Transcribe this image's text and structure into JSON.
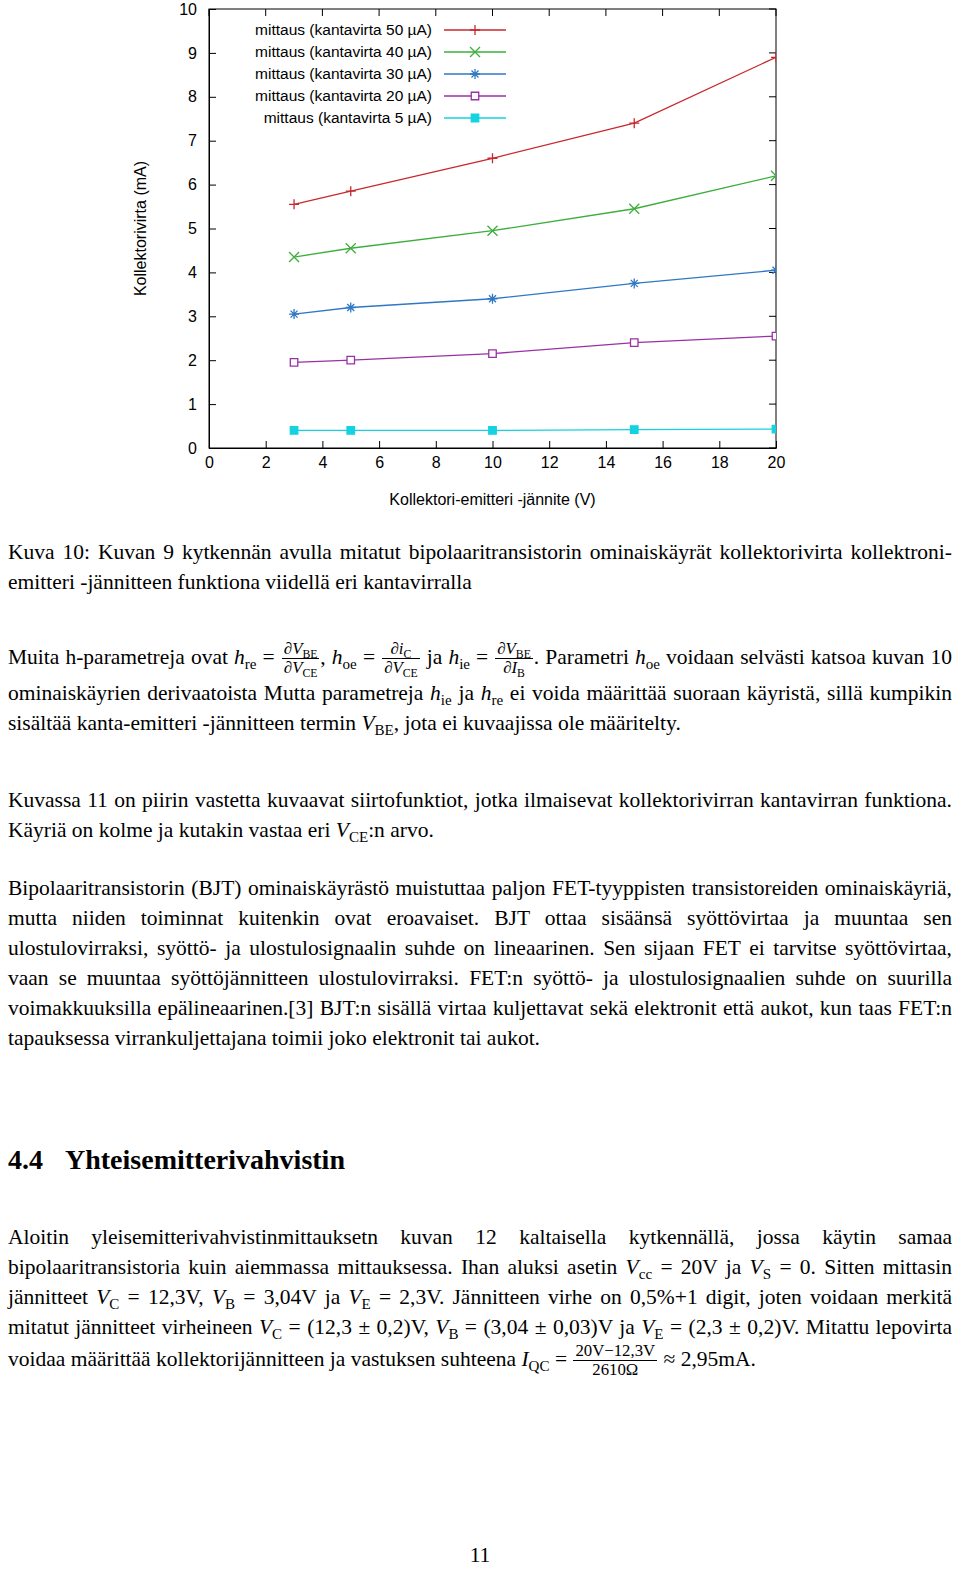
{
  "chart_data": {
    "type": "line",
    "x": [
      3,
      5,
      10,
      15,
      20
    ],
    "series": [
      {
        "name": "mittaus (kantavirta 50 µA)",
        "color": "#c8282d",
        "marker": "plus",
        "values": [
          5.55,
          5.85,
          6.6,
          7.4,
          8.9
        ]
      },
      {
        "name": "mittaus (kantavirta 40 µA)",
        "color": "#3cae3c",
        "marker": "cross",
        "values": [
          4.35,
          4.55,
          4.95,
          5.45,
          6.2
        ]
      },
      {
        "name": "mittaus (kantavirta 30 µA)",
        "color": "#2f78c4",
        "marker": "star",
        "values": [
          3.05,
          3.2,
          3.4,
          3.75,
          4.05
        ]
      },
      {
        "name": "mittaus (kantavirta 20 µA)",
        "color": "#9a30a6",
        "marker": "square-open",
        "values": [
          1.95,
          2.0,
          2.15,
          2.4,
          2.55
        ]
      },
      {
        "name": "mittaus (kantavirta 5 µA)",
        "color": "#14d2e0",
        "marker": "square",
        "values": [
          0.4,
          0.4,
          0.4,
          0.42,
          0.43
        ]
      }
    ],
    "xlim": [
      0,
      20
    ],
    "ylim": [
      0,
      10
    ],
    "xticks": [
      0,
      2,
      4,
      6,
      8,
      10,
      12,
      14,
      16,
      18,
      20
    ],
    "yticks": [
      0,
      1,
      2,
      3,
      4,
      5,
      6,
      7,
      8,
      9,
      10
    ],
    "x_label": "Kollektori-emitteri -jännite (V)",
    "y_label": "Kollektorivirta (mA)",
    "legend": "top-left",
    "grid": false
  },
  "document": {
    "caption": "Kuva 10: Kuvan 9 kytkennän avulla mitatut bipolaaritransistorin ominaiskäyrät kollektorivirta kollektroni-emitteri -jännitteen funktiona viidellä eri kantavirralla",
    "paragraphs": [
      {
        "runs": [
          "Muita h-parametreja ovat ",
          {
            "v": "h",
            "sub": "re"
          },
          " = ",
          {
            "frac": {
              "num": [
                "∂",
                {
                  "v": "V",
                  "sub": "BE"
                }
              ],
              "den": [
                "∂",
                {
                  "v": "V",
                  "sub": "CE"
                }
              ]
            }
          },
          ", ",
          {
            "v": "h",
            "sub": "oe"
          },
          " = ",
          {
            "frac": {
              "num": [
                "∂",
                {
                  "v": "i",
                  "sub": "C"
                }
              ],
              "den": [
                "∂",
                {
                  "v": "V",
                  "sub": "CE"
                }
              ]
            }
          },
          " ja ",
          {
            "v": "h",
            "sub": "ie"
          },
          " = ",
          {
            "frac": {
              "num": [
                "∂",
                {
                  "v": "V",
                  "sub": "BE"
                }
              ],
              "den": [
                "∂",
                {
                  "v": "I",
                  "sub": "B"
                }
              ]
            }
          },
          ". Parametri ",
          {
            "v": "h",
            "sub": "oe"
          },
          " voidaan selvästi katsoa kuvan 10 ominaiskäyrien derivaatoista Mutta parametreja ",
          {
            "v": "h",
            "sub": "ie"
          },
          " ja ",
          {
            "v": "h",
            "sub": "re"
          },
          " ei voida määrittää suoraan käyristä, sillä kumpikin sisältää kanta-emitteri -jännitteen termin ",
          {
            "v": "V",
            "sub": "BE"
          },
          ", jota ei kuvaajissa ole määritelty."
        ]
      },
      {
        "runs": [
          "Kuvassa 11 on piirin vastetta kuvaavat siirtofunktiot, jotka ilmaisevat kollektorivirran kantavirran funktiona. Käyriä on kolme ja kutakin vastaa eri ",
          {
            "v": "V",
            "sub": "CE"
          },
          ":n arvo."
        ]
      },
      {
        "runs": [
          "Bipolaaritransistorin (BJT) ominaiskäyrästö muistuttaa paljon FET-tyyppisten transistoreiden ominaiskäyriä, mutta niiden toiminnat kuitenkin ovat eroavaiset. BJT ottaa sisäänsä syöttövirtaa ja muuntaa sen ulostulovirraksi, syöttö- ja ulostulosignaalin suhde on lineaarinen. Sen sijaan FET ei tarvitse syöttövirtaa, vaan se muuntaa syöttöjännitteen ulostulovirraksi. FET:n syöttö- ja ulostulosignaalien suhde on suurilla voimakkuuksilla epälineaarinen.[3] BJT:n sisällä virtaa kuljettavat sekä elektronit että aukot, kun taas FET:n tapauksessa virrankuljettajana toimii joko elektronit tai aukot."
        ]
      }
    ],
    "heading": {
      "number": "4.4",
      "title": "Yhteisemitterivahvistin"
    },
    "paragraphs_after": [
      {
        "runs": [
          "Aloitin yleisemitterivahvistinmittauksetn kuvan 12 kaltaisella kytkennällä, jossa käytin samaa bipolaaritransistoria kuin aiemmassa mittauksessa. Ihan aluksi asetin ",
          {
            "v": "V",
            "sub": "cc"
          },
          " = 20V ja ",
          {
            "v": "V",
            "sub": "S"
          },
          " = 0. Sitten mittasin jännitteet ",
          {
            "v": "V",
            "sub": "C"
          },
          " = 12,3V, ",
          {
            "v": "V",
            "sub": "B"
          },
          " = 3,04V ja ",
          {
            "v": "V",
            "sub": "E"
          },
          " = 2,3V. Jännitteen virhe on 0,5%+1 digit, joten voidaan merkitä mitatut jännitteet virheineen ",
          {
            "v": "V",
            "sub": "C"
          },
          " = (12,3 ± 0,2)V, ",
          {
            "v": "V",
            "sub": "B"
          },
          " = (3,04 ± 0,03)V ja ",
          {
            "v": "V",
            "sub": "E"
          },
          " = (2,3 ± 0,2)V. Mitattu lepovirta voidaa määrittää kollektorijännitteen ja vastuksen suhteena ",
          {
            "v": "I",
            "sub": "QC"
          },
          " = ",
          {
            "frac": {
              "num": [
                "20V−12,3V"
              ],
              "den": [
                "2610Ω"
              ]
            }
          },
          " ≈ 2,95mA."
        ]
      }
    ],
    "page_number": "11"
  }
}
